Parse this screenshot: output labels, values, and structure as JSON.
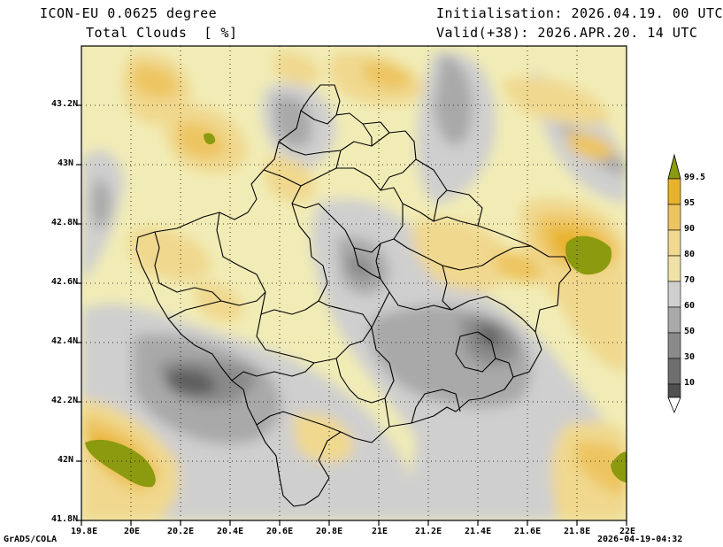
{
  "header": {
    "model": "ICON-EU 0.0625 degree",
    "variable": "Total Clouds  [ %]",
    "init": "Initialisation: 2026.04.19. 00 UTC",
    "valid": "Valid(+38): 2026.APR.20. 14 UTC"
  },
  "footer": {
    "left": "GrADS/COLA",
    "right": "2026-04-19-04:32"
  },
  "axes": {
    "lat_labels": [
      "43.2N",
      "43N",
      "42.8N",
      "42.6N",
      "42.4N",
      "42.2N",
      "42N",
      "41.8N"
    ],
    "lon_labels": [
      "19.8E",
      "20E",
      "20.2E",
      "20.4E",
      "20.6E",
      "20.8E",
      "21E",
      "21.2E",
      "21.4E",
      "21.6E",
      "21.8E",
      "22E"
    ]
  },
  "colorbar": {
    "labels": [
      "99.5",
      "95",
      "90",
      "80",
      "70",
      "60",
      "50",
      "30",
      "10"
    ],
    "colors": [
      "#8c9a10",
      "#e8b22c",
      "#edc560",
      "#f0d88e",
      "#f1ecb6",
      "#cfcfcf",
      "#a9a9a9",
      "#8a8a8a",
      "#5e5e5e",
      "#ffffff"
    ]
  }
}
